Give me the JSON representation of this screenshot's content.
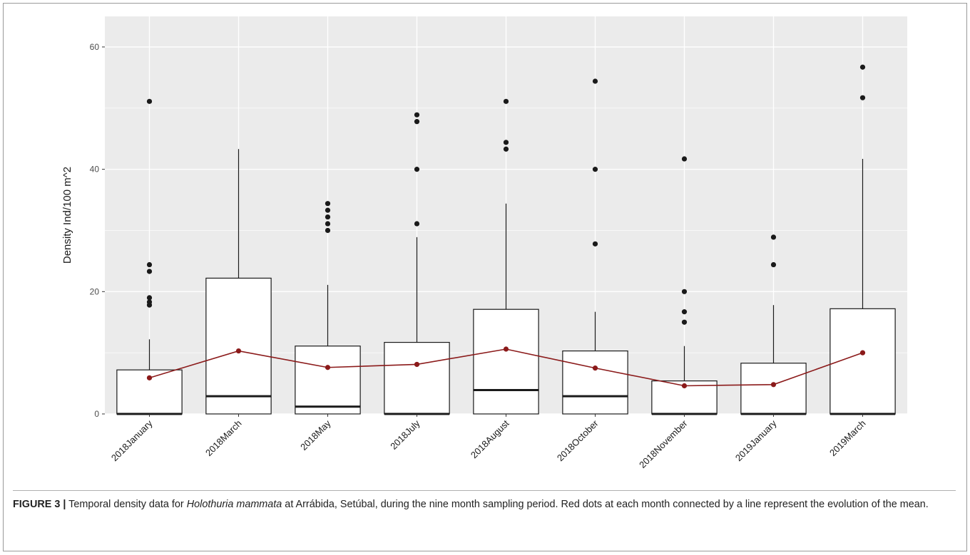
{
  "chart_data": {
    "type": "box",
    "ylabel": "Density Ind/100 m^2",
    "xlabel": "",
    "ylim": [
      0,
      65
    ],
    "yticks": [
      0,
      20,
      40,
      60
    ],
    "grid": true,
    "categories": [
      "2018January",
      "2018March",
      "2018May",
      "2018July",
      "2018August",
      "2018October",
      "2018November",
      "2019January",
      "2019March"
    ],
    "boxes": [
      {
        "q1": 0,
        "median": 0,
        "q3": 7.2,
        "whisker_low": 0,
        "whisker_high": 12.2,
        "outliers": [
          17.8,
          18.3,
          19.0,
          23.3,
          24.4,
          51.1
        ]
      },
      {
        "q1": 0,
        "median": 2.9,
        "q3": 22.2,
        "whisker_low": 0,
        "whisker_high": 43.3,
        "outliers": []
      },
      {
        "q1": 0,
        "median": 1.2,
        "q3": 11.1,
        "whisker_low": 0,
        "whisker_high": 21.1,
        "outliers": [
          30.0,
          31.1,
          32.2,
          33.3,
          34.4
        ]
      },
      {
        "q1": 0,
        "median": 0,
        "q3": 11.7,
        "whisker_low": 0,
        "whisker_high": 28.9,
        "outliers": [
          31.1,
          40.0,
          47.8,
          48.9
        ]
      },
      {
        "q1": 0,
        "median": 3.9,
        "q3": 17.1,
        "whisker_low": 0,
        "whisker_high": 34.4,
        "outliers": [
          43.3,
          44.4,
          51.1
        ]
      },
      {
        "q1": 0,
        "median": 2.9,
        "q3": 10.3,
        "whisker_low": 0,
        "whisker_high": 16.7,
        "outliers": [
          27.8,
          40.0,
          54.4
        ]
      },
      {
        "q1": 0,
        "median": 0,
        "q3": 5.4,
        "whisker_low": 0,
        "whisker_high": 11.1,
        "outliers": [
          15.0,
          16.7,
          20.0,
          41.7
        ]
      },
      {
        "q1": 0,
        "median": 0,
        "q3": 8.3,
        "whisker_low": 0,
        "whisker_high": 17.8,
        "outliers": [
          24.4,
          28.9
        ]
      },
      {
        "q1": 0,
        "median": 0,
        "q3": 17.2,
        "whisker_low": 0,
        "whisker_high": 41.7,
        "outliers": [
          51.7,
          56.7
        ]
      }
    ],
    "series": [
      {
        "values": [
          5.9,
          10.3,
          7.6,
          8.1,
          10.6,
          7.5,
          4.6,
          4.8,
          10.0
        ]
      }
    ],
    "colors": {
      "mean": "#8b1a1a",
      "panel": "#ebebeb",
      "grid": "#ffffff",
      "box_fill": "#ffffff",
      "box_line": "#1a1a1a",
      "outlier": "#1a1a1a"
    }
  },
  "caption": {
    "label": "FIGURE 3 |",
    "text_before": " Temporal density data for ",
    "species": "Holothuria mammata",
    "text_after": " at Arrábida, Setúbal, during the nine month sampling period. Red dots at each month connected by a line represent the evolution of the mean."
  }
}
